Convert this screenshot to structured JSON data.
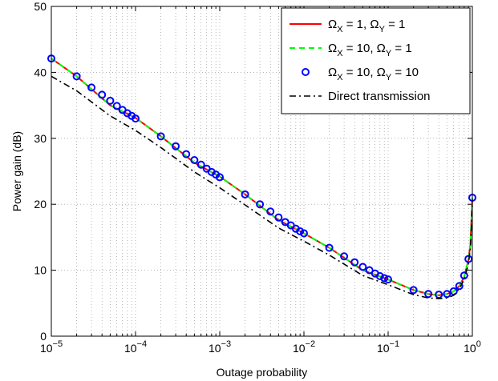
{
  "chart_data": {
    "type": "line",
    "xlabel": "Outage probability",
    "ylabel": "Power gain (dB)",
    "xscale": "log",
    "xlim": [
      1e-05,
      1
    ],
    "ylim": [
      0,
      50
    ],
    "grid": true,
    "legend_position": "top-right",
    "x_tick_labels": [
      {
        "base": "10",
        "exp": "−5"
      },
      {
        "base": "10",
        "exp": "−4"
      },
      {
        "base": "10",
        "exp": "−3"
      },
      {
        "base": "10",
        "exp": "−2"
      },
      {
        "base": "10",
        "exp": "−1"
      },
      {
        "base": "10",
        "exp": "0"
      }
    ],
    "y_tick_labels": [
      "0",
      "10",
      "20",
      "30",
      "40",
      "50"
    ],
    "series": [
      {
        "name": "Ω_X = 1, Ω_Y = 1",
        "legend": {
          "pre": "Ω",
          "s1": "X",
          "mid": " = 1, Ω",
          "s2": "Y",
          "post": " = 1"
        },
        "style": "solid",
        "color": "#ff0000",
        "x": [
          1e-05,
          2e-05,
          5e-05,
          0.0001,
          0.0002,
          0.0005,
          0.001,
          0.002,
          0.005,
          0.01,
          0.02,
          0.05,
          0.1,
          0.2,
          0.3,
          0.4,
          0.5,
          0.6,
          0.7,
          0.8,
          0.9,
          0.95,
          1.0
        ],
        "y": [
          42.1,
          39.4,
          35.0,
          33.1,
          30.3,
          26.3,
          24.2,
          21.5,
          17.6,
          15.6,
          13.4,
          10.0,
          8.6,
          7.0,
          6.4,
          6.2,
          6.4,
          6.8,
          7.6,
          9.0,
          11.6,
          14.0,
          21.0
        ]
      },
      {
        "name": "Ω_X = 10, Ω_Y = 1",
        "legend": {
          "pre": "Ω",
          "s1": "X",
          "mid": " = 10, Ω",
          "s2": "Y",
          "post": " = 1"
        },
        "style": "dashed",
        "color": "#00ff00",
        "x": [
          1e-05,
          2e-05,
          5e-05,
          0.0001,
          0.0002,
          0.0005,
          0.001,
          0.002,
          0.005,
          0.01,
          0.02,
          0.05,
          0.1,
          0.2,
          0.3,
          0.4,
          0.5,
          0.6,
          0.7,
          0.8,
          0.9,
          0.95,
          1.0
        ],
        "y": [
          42.1,
          39.4,
          35.0,
          33.1,
          30.3,
          26.3,
          24.2,
          21.5,
          17.6,
          15.6,
          13.4,
          10.0,
          8.6,
          7.0,
          6.4,
          6.2,
          6.4,
          6.8,
          7.6,
          9.0,
          11.6,
          14.0,
          21.0
        ]
      },
      {
        "name": "Ω_X = 10, Ω_Y = 10",
        "legend": {
          "pre": "Ω",
          "s1": "X",
          "mid": " = 10, Ω",
          "s2": "Y",
          "post": " = 10"
        },
        "style": "markers",
        "color": "#0000ff",
        "x": [
          1e-05,
          2e-05,
          3e-05,
          4e-05,
          5e-05,
          6e-05,
          7e-05,
          8e-05,
          9e-05,
          0.0001,
          0.0002,
          0.0003,
          0.0004,
          0.0005,
          0.0006,
          0.0007,
          0.0008,
          0.0009,
          0.001,
          0.002,
          0.003,
          0.004,
          0.005,
          0.006,
          0.007,
          0.008,
          0.009,
          0.01,
          0.02,
          0.03,
          0.04,
          0.05,
          0.06,
          0.07,
          0.08,
          0.09,
          0.1,
          0.2,
          0.3,
          0.4,
          0.5,
          0.6,
          0.7,
          0.8,
          0.9,
          1.0
        ],
        "y": [
          42.1,
          39.4,
          37.7,
          36.6,
          35.7,
          34.9,
          34.3,
          33.8,
          33.4,
          33.0,
          30.3,
          28.8,
          27.6,
          26.7,
          26.0,
          25.4,
          24.9,
          24.5,
          24.1,
          21.5,
          20.0,
          18.9,
          18.0,
          17.3,
          16.8,
          16.3,
          15.9,
          15.6,
          13.4,
          12.1,
          11.2,
          10.5,
          10.0,
          9.5,
          9.1,
          8.8,
          8.6,
          7.0,
          6.4,
          6.3,
          6.4,
          6.8,
          7.6,
          9.2,
          11.7,
          21.0
        ]
      },
      {
        "name": "Direct transmission",
        "legend": {
          "pre": "Direct transmission",
          "s1": "",
          "mid": "",
          "s2": "",
          "post": ""
        },
        "style": "dashdot",
        "color": "#000000",
        "x": [
          1e-05,
          2e-05,
          5e-05,
          0.0001,
          0.0002,
          0.0005,
          0.001,
          0.002,
          0.005,
          0.01,
          0.02,
          0.05,
          0.1,
          0.2,
          0.3,
          0.4,
          0.5,
          0.6,
          0.7,
          0.8,
          0.9,
          0.95,
          1.0
        ],
        "y": [
          39.4,
          37.2,
          33.4,
          31.2,
          28.6,
          24.9,
          22.5,
          19.9,
          16.4,
          14.4,
          12.3,
          9.2,
          7.8,
          6.3,
          5.8,
          5.7,
          5.8,
          6.2,
          7.2,
          8.6,
          11.0,
          13.5,
          20.0
        ]
      }
    ]
  }
}
